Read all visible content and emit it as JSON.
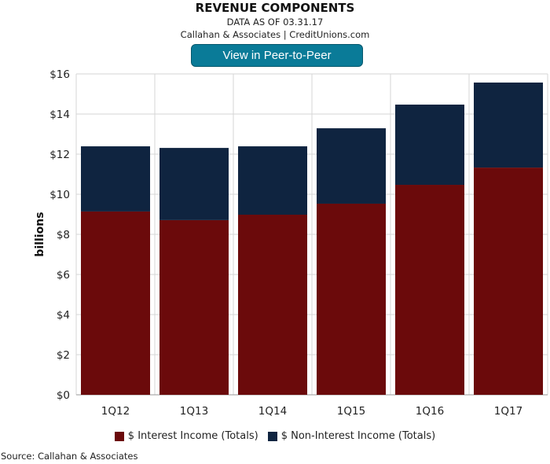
{
  "header": {
    "title": "REVENUE COMPONENTS",
    "date_line": "DATA AS OF 03.31.17",
    "credit_line": "Callahan & Associates | CreditUnions.com",
    "button_label": "View in Peer-to-Peer"
  },
  "source": "Source: Callahan & Associates",
  "colors": {
    "interest": "#6b0a0b",
    "non_interest": "#0f2440",
    "button": "#0a7b98"
  },
  "chart_data": {
    "type": "bar",
    "stacked": true,
    "title": "REVENUE COMPONENTS",
    "ylabel": "billions",
    "xlabel": "",
    "ylim": [
      0,
      16
    ],
    "yticks": [
      "$0",
      "$2",
      "$4",
      "$6",
      "$8",
      "$10",
      "$12",
      "$14",
      "$16"
    ],
    "categories": [
      "1Q12",
      "1Q13",
      "1Q14",
      "1Q15",
      "1Q16",
      "1Q17"
    ],
    "series": [
      {
        "name": "$ Interest Income (Totals)",
        "values": [
          9.14,
          8.71,
          8.98,
          9.53,
          10.47,
          11.33
        ]
      },
      {
        "name": "$ Non-Interest Income (Totals)",
        "values": [
          3.25,
          3.6,
          3.41,
          3.76,
          4.0,
          4.24
        ]
      }
    ],
    "grid": true,
    "legend": "bottom"
  }
}
